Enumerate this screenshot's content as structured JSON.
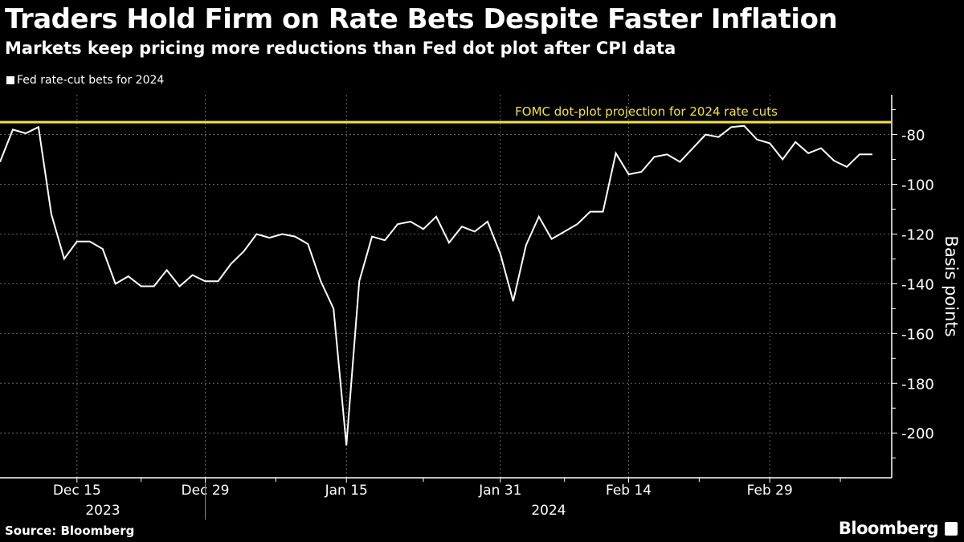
{
  "chart_data": {
    "type": "line",
    "title": "Traders Hold Firm on Rate Bets Despite Faster Inflation",
    "subtitle": "Markets keep pricing more reductions than Fed dot plot after CPI data",
    "ylabel": "Basis points",
    "source": "Source: Bloomberg",
    "logo": "Bloomberg",
    "ylim": [
      -218,
      -64
    ],
    "yticks": [
      -80,
      -100,
      -120,
      -140,
      -160,
      -180,
      -200
    ],
    "ytick_labels": [
      "-80",
      "-100",
      "-120",
      "-140",
      "-160",
      "-180",
      "-200"
    ],
    "xtick_labels": [
      {
        "date": "2023-12-15",
        "label": "Dec 15"
      },
      {
        "date": "2023-12-29",
        "label": "Dec 29"
      },
      {
        "date": "2024-01-15",
        "label": "Jan 15"
      },
      {
        "date": "2024-01-31",
        "label": "Jan 31"
      },
      {
        "date": "2024-02-14",
        "label": "Feb 14"
      },
      {
        "date": "2024-02-29",
        "label": "Feb 29"
      }
    ],
    "year_labels": [
      "2023",
      "2024"
    ],
    "grid": true,
    "legend_position": "top-left",
    "reference_line": {
      "value": -75,
      "label": "FOMC dot-plot projection for 2024 rate cuts",
      "color": "#f5e625"
    },
    "series": [
      {
        "name": "Fed rate-cut bets for 2024",
        "color": "#ffffff",
        "x": [
          "2023-12-07",
          "2023-12-08",
          "2023-12-11",
          "2023-12-12",
          "2023-12-13",
          "2023-12-14",
          "2023-12-15",
          "2023-12-18",
          "2023-12-19",
          "2023-12-20",
          "2023-12-21",
          "2023-12-22",
          "2023-12-25",
          "2023-12-26",
          "2023-12-27",
          "2023-12-28",
          "2023-12-29",
          "2024-01-01",
          "2024-01-02",
          "2024-01-03",
          "2024-01-04",
          "2024-01-05",
          "2024-01-08",
          "2024-01-09",
          "2024-01-10",
          "2024-01-11",
          "2024-01-12",
          "2024-01-15",
          "2024-01-16",
          "2024-01-17",
          "2024-01-18",
          "2024-01-19",
          "2024-01-22",
          "2024-01-23",
          "2024-01-24",
          "2024-01-25",
          "2024-01-26",
          "2024-01-29",
          "2024-01-30",
          "2024-01-31",
          "2024-02-01",
          "2024-02-02",
          "2024-02-05",
          "2024-02-06",
          "2024-02-07",
          "2024-02-08",
          "2024-02-09",
          "2024-02-12",
          "2024-02-13",
          "2024-02-14",
          "2024-02-15",
          "2024-02-16",
          "2024-02-19",
          "2024-02-20",
          "2024-02-21",
          "2024-02-22",
          "2024-02-23",
          "2024-02-26",
          "2024-02-27",
          "2024-02-28",
          "2024-02-29",
          "2024-03-01",
          "2024-03-04",
          "2024-03-05",
          "2024-03-06",
          "2024-03-07",
          "2024-03-08",
          "2024-03-11",
          "2024-03-12"
        ],
        "values": [
          -91,
          -78,
          -79.5,
          -77,
          -112,
          -130,
          -123,
          -123,
          -126,
          -140,
          -137,
          -141,
          -141,
          -134.5,
          -141,
          -136.5,
          -139,
          -139,
          -132,
          -127,
          -120,
          -121.5,
          -120,
          -121,
          -124,
          -139,
          -150,
          -205,
          -139,
          -121,
          -122.5,
          -116,
          -115,
          -118,
          -113,
          -123.5,
          -117,
          -119,
          -115,
          -128,
          -147,
          -124.5,
          -113,
          -122,
          -119,
          -116,
          -111,
          -111,
          -87.5,
          -96,
          -95,
          -89,
          -88,
          -91,
          -85.5,
          -80,
          -81,
          -77,
          -76.5,
          -82,
          -83.5,
          -90,
          -83,
          -87.5,
          -85.5,
          -90.5,
          -93,
          -88,
          -88
        ]
      }
    ]
  }
}
